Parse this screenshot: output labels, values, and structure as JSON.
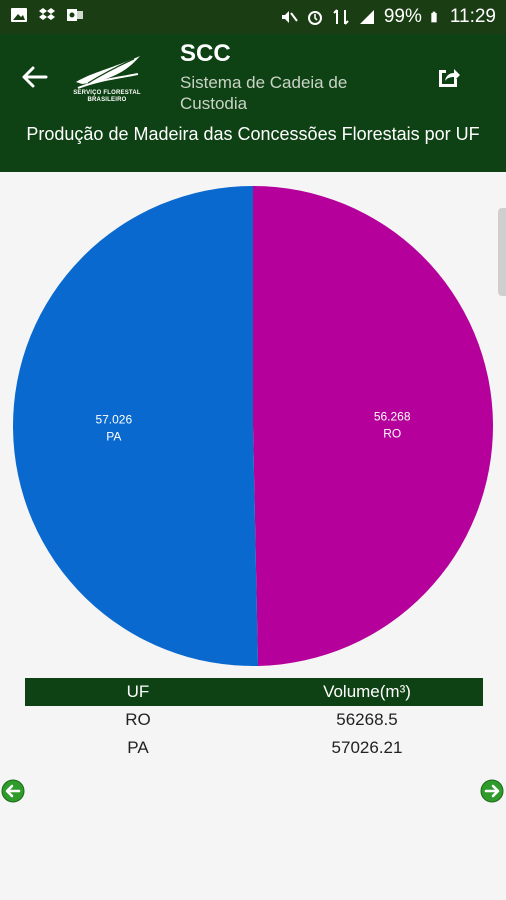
{
  "status_bar": {
    "battery": "99%",
    "time": "11:29"
  },
  "app_bar": {
    "title": "SCC",
    "subtitle": "Sistema de Cadeia de Custodia",
    "logo_text": "SERVIÇO FLORESTAL BRASILEIRO"
  },
  "page": {
    "title": "Produção de Madeira das Concessões Florestais por UF"
  },
  "chart_data": {
    "type": "pie",
    "categories": [
      "RO",
      "PA"
    ],
    "values": [
      56.268,
      57.026
    ],
    "labels": [
      {
        "value": "56.268",
        "category": "RO"
      },
      {
        "value": "57.026",
        "category": "PA"
      }
    ],
    "colors": [
      "#b5009b",
      "#0a69cf"
    ]
  },
  "table": {
    "headers": [
      "UF",
      "Volume(m³)"
    ],
    "rows": [
      [
        "RO",
        "56268.5"
      ],
      [
        "PA",
        "57026.21"
      ]
    ]
  },
  "colors": {
    "header_bg": "#0e4113",
    "status_bg": "#1b3d14",
    "nav_green": "#2e9b2a"
  }
}
